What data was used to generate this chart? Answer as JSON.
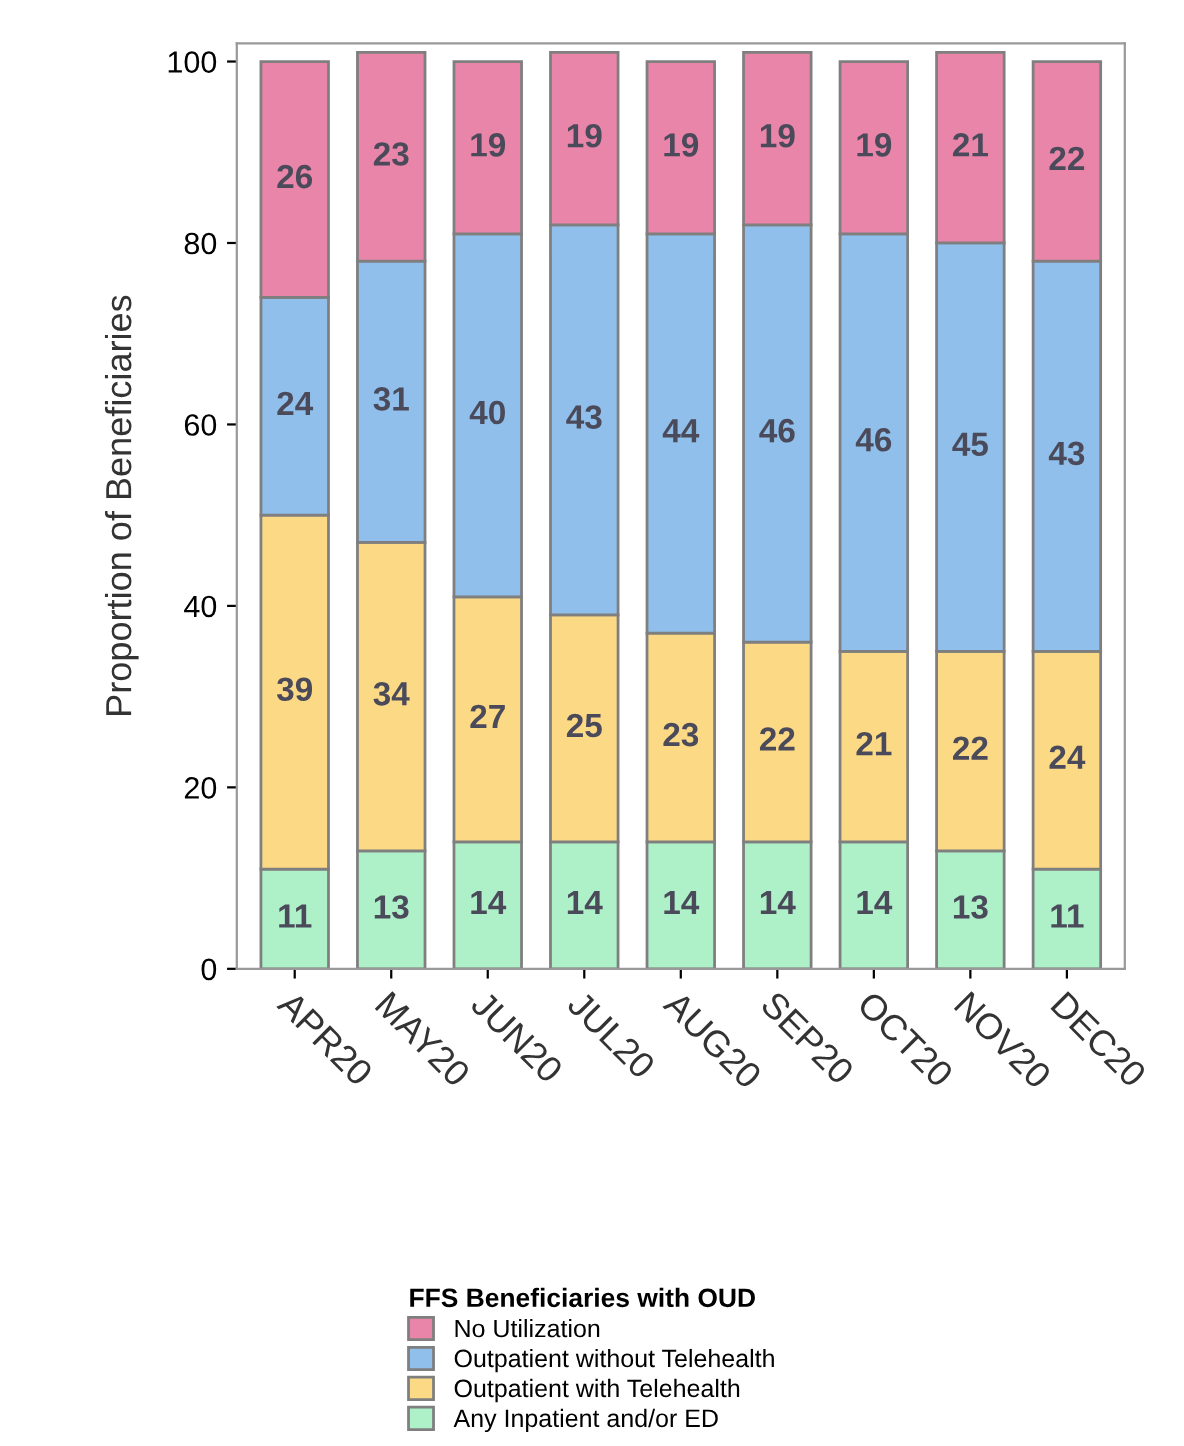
{
  "chart_data": {
    "type": "bar",
    "stacked": true,
    "data_labels": true,
    "ylabel": "Proportion of Beneficiaries",
    "legend_title": "FFS Beneficiaries with OUD",
    "legend": "bottom",
    "grid": false,
    "categories": [
      "APR20",
      "MAY20",
      "JUN20",
      "JUL20",
      "AUG20",
      "SEP20",
      "OCT20",
      "NOV20",
      "DEC20"
    ],
    "ylim": [
      0,
      102
    ],
    "yticks": [
      0,
      20,
      40,
      60,
      80,
      100
    ],
    "series": [
      {
        "name": "Any Inpatient and/or ED",
        "color": "#aef0c8",
        "values": [
          11,
          13,
          14,
          14,
          14,
          14,
          14,
          13,
          11
        ]
      },
      {
        "name": "Outpatient with Telehealth",
        "color": "#fcd985",
        "values": [
          39,
          34,
          27,
          25,
          23,
          22,
          21,
          22,
          24
        ]
      },
      {
        "name": "Outpatient without Telehealth",
        "color": "#8fbfea",
        "values": [
          24,
          31,
          40,
          43,
          44,
          46,
          46,
          45,
          43
        ]
      },
      {
        "name": "No Utilization",
        "color": "#e985a8",
        "values": [
          26,
          23,
          19,
          19,
          19,
          19,
          19,
          21,
          22
        ]
      }
    ]
  }
}
